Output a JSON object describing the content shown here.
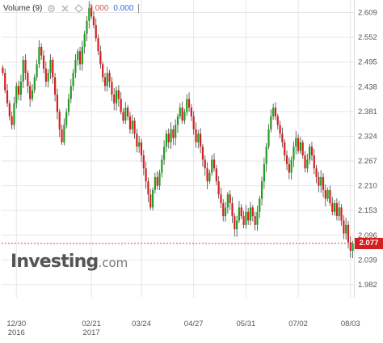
{
  "legend": {
    "indicator": "Volume (9)",
    "value_a": "0.000",
    "value_b": "0.000"
  },
  "logo": {
    "brand": "Investing",
    "suffix": ".com"
  },
  "colors": {
    "up": "#1f9f1f",
    "down": "#d61f1f",
    "grid": "#e6e6e6",
    "axis_text": "#555555",
    "current_line": "#d61f1f",
    "price_tag": "#d61f1f"
  },
  "chart_data": {
    "type": "candlestick",
    "grid": true,
    "y_axis_side": "right",
    "ylim": [
      1.952,
      2.638
    ],
    "y_ticks": [
      {
        "value": 2.609,
        "label": "2.609"
      },
      {
        "value": 2.552,
        "label": "2.552"
      },
      {
        "value": 2.495,
        "label": "2.495"
      },
      {
        "value": 2.438,
        "label": "2.438"
      },
      {
        "value": 2.381,
        "label": "2.381"
      },
      {
        "value": 2.324,
        "label": "2.324"
      },
      {
        "value": 2.267,
        "label": "2.267"
      },
      {
        "value": 2.21,
        "label": "2.210"
      },
      {
        "value": 2.153,
        "label": "2.153"
      },
      {
        "value": 2.096,
        "label": "2.096"
      },
      {
        "value": 2.039,
        "label": "2.039"
      },
      {
        "value": 1.982,
        "label": "1.982"
      }
    ],
    "x_ticks": [
      {
        "index": 6,
        "label": "12/30",
        "sublabel": "2016"
      },
      {
        "index": 39,
        "label": "02/21",
        "sublabel": "2017"
      },
      {
        "index": 61,
        "label": "03/24",
        "sublabel": ""
      },
      {
        "index": 84,
        "label": "04/27",
        "sublabel": ""
      },
      {
        "index": 107,
        "label": "05/31",
        "sublabel": ""
      },
      {
        "index": 130,
        "label": "07/02",
        "sublabel": ""
      },
      {
        "index": 153,
        "label": "08/03",
        "sublabel": ""
      }
    ],
    "current_value": 2.077,
    "current_label": "2.077",
    "closes": [
      2.47,
      2.43,
      2.4,
      2.37,
      2.35,
      2.4,
      2.44,
      2.42,
      2.45,
      2.5,
      2.47,
      2.44,
      2.41,
      2.43,
      2.46,
      2.49,
      2.53,
      2.51,
      2.48,
      2.45,
      2.47,
      2.5,
      2.46,
      2.42,
      2.38,
      2.34,
      2.31,
      2.35,
      2.38,
      2.41,
      2.44,
      2.47,
      2.5,
      2.52,
      2.49,
      2.53,
      2.56,
      2.59,
      2.62,
      2.6,
      2.58,
      2.55,
      2.52,
      2.49,
      2.46,
      2.44,
      2.47,
      2.45,
      2.42,
      2.4,
      2.43,
      2.41,
      2.38,
      2.36,
      2.39,
      2.37,
      2.34,
      2.36,
      2.33,
      2.3,
      2.31,
      2.28,
      2.25,
      2.22,
      2.19,
      2.16,
      2.2,
      2.23,
      2.21,
      2.24,
      2.27,
      2.3,
      2.33,
      2.31,
      2.34,
      2.32,
      2.35,
      2.37,
      2.39,
      2.36,
      2.38,
      2.41,
      2.39,
      2.37,
      2.34,
      2.31,
      2.33,
      2.3,
      2.27,
      2.25,
      2.22,
      2.24,
      2.27,
      2.25,
      2.22,
      2.19,
      2.17,
      2.14,
      2.16,
      2.19,
      2.17,
      2.14,
      2.11,
      2.13,
      2.16,
      2.14,
      2.12,
      2.15,
      2.13,
      2.16,
      2.14,
      2.12,
      2.15,
      2.18,
      2.22,
      2.26,
      2.3,
      2.34,
      2.37,
      2.39,
      2.37,
      2.35,
      2.33,
      2.31,
      2.28,
      2.26,
      2.24,
      2.27,
      2.3,
      2.32,
      2.29,
      2.31,
      2.28,
      2.25,
      2.27,
      2.3,
      2.28,
      2.25,
      2.23,
      2.21,
      2.23,
      2.2,
      2.18,
      2.2,
      2.17,
      2.15,
      2.17,
      2.14,
      2.16,
      2.13,
      2.1,
      2.12,
      2.08,
      2.06,
      2.077
    ]
  }
}
